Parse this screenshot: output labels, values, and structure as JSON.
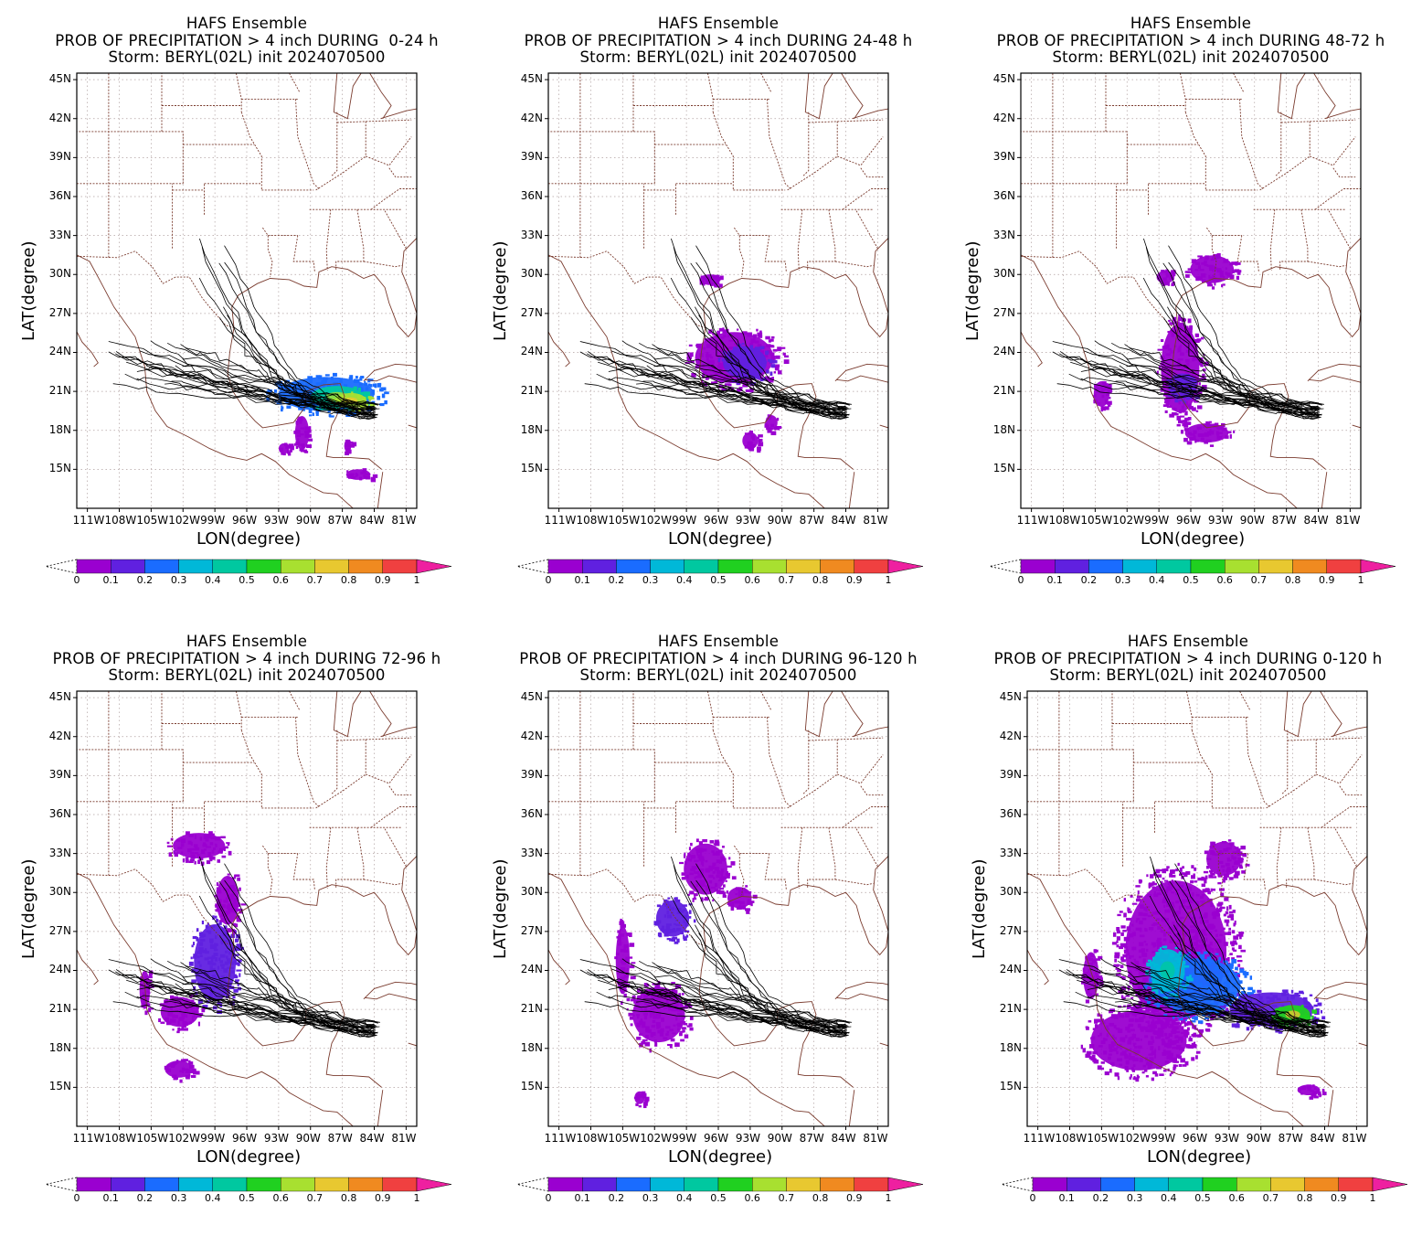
{
  "colors": {
    "coast": "#7a3b2e",
    "border": "#7a3b2e",
    "grid": "#b0a0a0",
    "track": "#000000",
    "colorbar": [
      "#9a00d0",
      "#6020e0",
      "#1a6cff",
      "#00b8d8",
      "#00c8a0",
      "#20d020",
      "#a8e030",
      "#e8c830",
      "#f08a20",
      "#f04040",
      "#ee20a0"
    ]
  },
  "axes": {
    "xlabel": "LON(degree)",
    "ylabel": "LAT(degree)",
    "lat_ticks": [
      "45N",
      "42N",
      "39N",
      "36N",
      "33N",
      "30N",
      "27N",
      "24N",
      "21N",
      "18N",
      "15N"
    ],
    "lon_ticks": [
      "111W",
      "108W",
      "105W",
      "102W",
      "99W",
      "96W",
      "93W",
      "90W",
      "87W",
      "84W",
      "81W"
    ]
  },
  "colorbar_ticks": [
    "0",
    "0.1",
    "0.2",
    "0.3",
    "0.4",
    "0.5",
    "0.6",
    "0.7",
    "0.8",
    "0.9",
    "1"
  ],
  "panels": [
    {
      "title1": "HAFS Ensemble",
      "title2": "PROB OF PRECIPITATION > 4 inch DURING  0-24 h",
      "title3": "Storm: BERYL(02L) init 2024070500",
      "blobs": [
        [
          -88.5,
          20.8,
          5.5,
          1.6,
          0.25
        ],
        [
          -87.5,
          20.6,
          3,
          1,
          0.45
        ],
        [
          -86.2,
          20.3,
          1.8,
          0.7,
          0.62
        ],
        [
          -90.8,
          17.8,
          0.8,
          1.6,
          0.05
        ],
        [
          -92.5,
          16.6,
          0.6,
          0.5,
          0.05
        ],
        [
          -85.5,
          14.6,
          1.4,
          0.5,
          0.08
        ],
        [
          -86.5,
          16.8,
          0.4,
          0.6,
          0.05
        ]
      ]
    },
    {
      "title1": "HAFS Ensemble",
      "title2": "PROB OF PRECIPITATION > 4 inch DURING 24-48 h",
      "title3": "Storm: BERYL(02L) init 2024070500",
      "blobs": [
        [
          -94.5,
          23.6,
          4.5,
          2.4,
          0.08
        ],
        [
          -93.5,
          23.2,
          2.5,
          1.5,
          0.15
        ],
        [
          -96.8,
          29.6,
          1.2,
          0.5,
          0.05
        ],
        [
          -93,
          17.2,
          0.9,
          0.8,
          0.05
        ],
        [
          -91,
          18.6,
          0.7,
          0.7,
          0.05
        ]
      ]
    },
    {
      "title1": "HAFS Ensemble",
      "title2": "PROB OF PRECIPITATION > 4 inch DURING 48-72 h",
      "title3": "Storm: BERYL(02L) init 2024070500",
      "blobs": [
        [
          -97,
          22.8,
          2.2,
          4.2,
          0.08
        ],
        [
          -96.8,
          21.4,
          1.6,
          1.2,
          0.16
        ],
        [
          -94,
          30.4,
          2.5,
          1.3,
          0.05
        ],
        [
          -94.5,
          17.8,
          2.5,
          0.9,
          0.05
        ],
        [
          -104.4,
          20.8,
          0.9,
          1.2,
          0.05
        ],
        [
          -98.4,
          29.8,
          1,
          0.6,
          0.05
        ]
      ]
    },
    {
      "title1": "HAFS Ensemble",
      "title2": "PROB OF PRECIPITATION > 4 inch DURING 72-96 h",
      "title3": "Storm: BERYL(02L) init 2024070500",
      "blobs": [
        [
          -99,
          24.6,
          2.4,
          3.6,
          0.12
        ],
        [
          -97.8,
          29.4,
          1.3,
          2.3,
          0.08
        ],
        [
          -100.5,
          33.6,
          3,
          1.2,
          0.05
        ],
        [
          -102.3,
          20.8,
          2.2,
          1.4,
          0.05
        ],
        [
          -102.4,
          16.4,
          1.6,
          0.8,
          0.05
        ],
        [
          -105.6,
          22.5,
          0.6,
          1.8,
          0.05
        ]
      ]
    },
    {
      "title1": "HAFS Ensemble",
      "title2": "PROB OF PRECIPITATION > 4 inch DURING 96-120 h",
      "title3": "Storm: BERYL(02L) init 2024070500",
      "blobs": [
        [
          -97.2,
          31.8,
          2.5,
          2.4,
          0.05
        ],
        [
          -100.3,
          28,
          1.9,
          1.7,
          0.12
        ],
        [
          -101.6,
          20.6,
          3,
          2.6,
          0.05
        ],
        [
          -105,
          24.8,
          0.8,
          3.2,
          0.05
        ],
        [
          -94,
          29.6,
          1.4,
          1,
          0.05
        ],
        [
          -103.4,
          14.2,
          0.6,
          0.6,
          0.05
        ]
      ]
    },
    {
      "title1": "HAFS Ensemble",
      "title2": "PROB OF PRECIPITATION > 4 inch DURING 0-120 h",
      "title3": "Storm: BERYL(02L) init 2024070500",
      "blobs": [
        [
          -98,
          25.5,
          5.8,
          6.6,
          0.05
        ],
        [
          -96,
          22.8,
          5,
          2.6,
          0.22
        ],
        [
          -98.8,
          24,
          2,
          2,
          0.32
        ],
        [
          -89,
          21,
          4.8,
          1.6,
          0.18
        ],
        [
          -87,
          20.6,
          2,
          0.9,
          0.55
        ],
        [
          -101.5,
          18.6,
          5.5,
          2.8,
          0.05
        ],
        [
          -85.5,
          14.8,
          1.3,
          0.5,
          0.05
        ],
        [
          -106,
          23.6,
          0.9,
          2.2,
          0.05
        ],
        [
          -93.5,
          32.6,
          2,
          1.6,
          0.05
        ]
      ]
    }
  ]
}
